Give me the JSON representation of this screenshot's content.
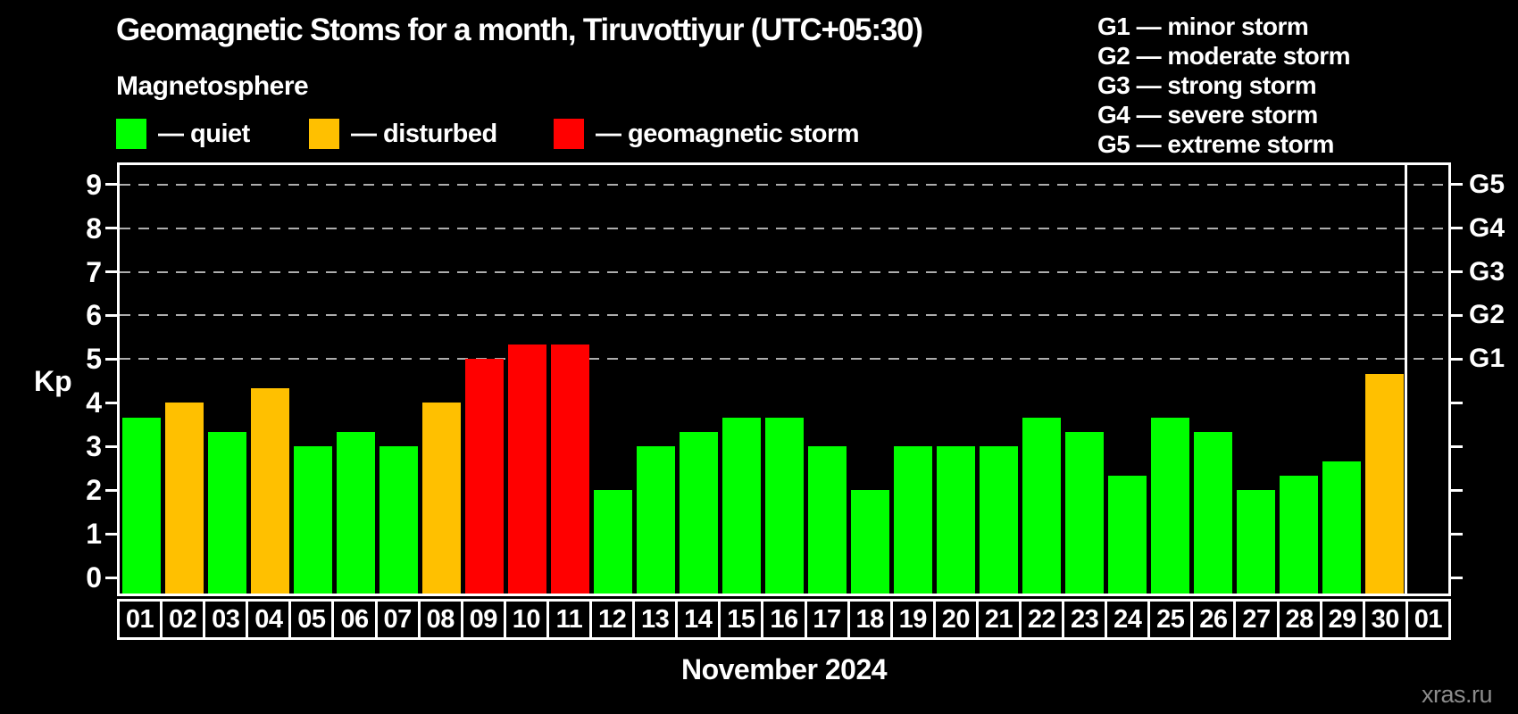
{
  "header": {
    "title": "Geomagnetic Stoms for a month, Tiruvottiyur (UTC+05:30)",
    "subtitle": "Magnetosphere"
  },
  "legend": {
    "items": [
      {
        "key": "quiet",
        "label": "— quiet",
        "color": "#00ff00"
      },
      {
        "key": "disturbed",
        "label": "— disturbed",
        "color": "#ffc000"
      },
      {
        "key": "storm",
        "label": "— geomagnetic storm",
        "color": "#ff0000"
      }
    ]
  },
  "storm_scale_legend": {
    "items": [
      "G1 — minor storm",
      "G2 — moderate storm",
      "G3 — strong storm",
      "G4 — severe storm",
      "G5 — extreme storm"
    ]
  },
  "chart_data": {
    "type": "bar",
    "title": "Geomagnetic Stoms for a month, Tiruvottiyur (UTC+05:30)",
    "xlabel": "November 2024",
    "ylabel": "Kp",
    "plot_range": {
      "top": 9.44,
      "bottom": -0.36
    },
    "yticks": [
      0,
      1,
      2,
      3,
      4,
      5,
      6,
      7,
      8,
      9
    ],
    "gridlines_at": [
      5,
      6,
      7,
      8,
      9
    ],
    "grid": "dashed",
    "right_axis": [
      {
        "kp": 5,
        "label": "G1"
      },
      {
        "kp": 6,
        "label": "G2"
      },
      {
        "kp": 7,
        "label": "G3"
      },
      {
        "kp": 8,
        "label": "G4"
      },
      {
        "kp": 9,
        "label": "G5"
      }
    ],
    "categories": [
      "01",
      "02",
      "03",
      "04",
      "05",
      "06",
      "07",
      "08",
      "09",
      "10",
      "11",
      "12",
      "13",
      "14",
      "15",
      "16",
      "17",
      "18",
      "19",
      "20",
      "21",
      "22",
      "23",
      "24",
      "25",
      "26",
      "27",
      "28",
      "29",
      "30",
      "01"
    ],
    "values": [
      3.67,
      4.0,
      3.33,
      4.33,
      3.0,
      3.33,
      3.0,
      4.0,
      5.0,
      5.33,
      5.33,
      2.0,
      3.0,
      3.33,
      3.67,
      3.67,
      3.0,
      2.0,
      3.0,
      3.0,
      3.0,
      3.67,
      3.33,
      2.33,
      3.67,
      3.33,
      2.0,
      2.33,
      2.67,
      4.67,
      null
    ],
    "statuses": [
      "quiet",
      "disturbed",
      "quiet",
      "disturbed",
      "quiet",
      "quiet",
      "quiet",
      "disturbed",
      "storm",
      "storm",
      "storm",
      "quiet",
      "quiet",
      "quiet",
      "quiet",
      "quiet",
      "quiet",
      "quiet",
      "quiet",
      "quiet",
      "quiet",
      "quiet",
      "quiet",
      "quiet",
      "quiet",
      "quiet",
      "quiet",
      "quiet",
      "quiet",
      "disturbed",
      null
    ]
  },
  "footer": {
    "caption": "November 2024",
    "watermark": "xras.ru"
  }
}
